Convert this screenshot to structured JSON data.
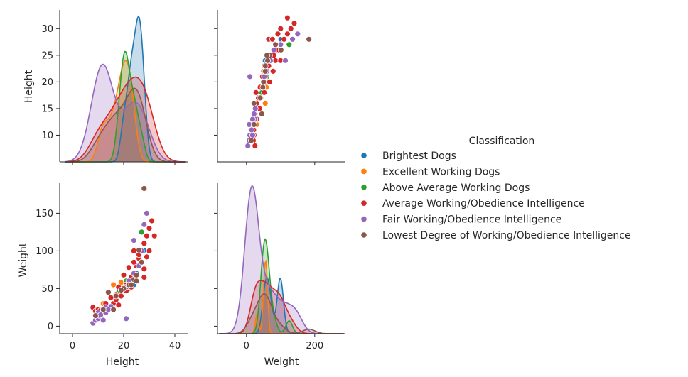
{
  "chart_data": {
    "type": "scatter",
    "kind": "pairplot",
    "variables": [
      "Height",
      "Weight"
    ],
    "diagonal": "kde",
    "legend": {
      "title": "Classification",
      "placement": "right"
    },
    "axes": {
      "Height": {
        "ticks": [
          10,
          15,
          20,
          25,
          30
        ],
        "label": "Height"
      },
      "Weight": {
        "ticks": [
          0,
          50,
          100,
          150
        ],
        "label": "Weight"
      },
      "Height_x": {
        "ticks": [
          0,
          20,
          40
        ],
        "label": "Height"
      },
      "Weight_x": {
        "ticks": [
          0,
          200
        ],
        "label": "Weight"
      }
    },
    "series": [
      {
        "name": "Brightest Dogs",
        "color": "#1f77b4",
        "points": [
          [
            20,
            52
          ],
          [
            22,
            60
          ],
          [
            25,
            70
          ],
          [
            26,
            95
          ],
          [
            27,
            100
          ],
          [
            24,
            55
          ],
          [
            23,
            65
          ],
          [
            26,
            100
          ],
          [
            28,
            101
          ]
        ]
      },
      {
        "name": "Excellent Working Dogs",
        "color": "#ff7f0e",
        "points": [
          [
            12,
            30
          ],
          [
            16,
            55
          ],
          [
            20,
            55
          ],
          [
            22,
            50
          ],
          [
            23,
            60
          ],
          [
            19,
            58
          ]
        ]
      },
      {
        "name": "Above Average Working Dogs",
        "color": "#2ca02c",
        "points": [
          [
            18,
            45
          ],
          [
            20,
            50
          ],
          [
            21,
            58
          ],
          [
            23,
            62
          ],
          [
            25,
            80
          ],
          [
            27,
            125
          ],
          [
            22,
            55
          ],
          [
            24,
            65
          ],
          [
            21,
            60
          ],
          [
            20,
            50
          ],
          [
            19,
            48
          ]
        ]
      },
      {
        "name": "Average Working/Obedience Intelligence",
        "color": "#d62728",
        "points": [
          [
            8,
            25
          ],
          [
            9,
            20
          ],
          [
            10,
            22
          ],
          [
            12,
            18
          ],
          [
            14,
            25
          ],
          [
            16,
            30
          ],
          [
            17,
            35
          ],
          [
            18,
            28
          ],
          [
            19,
            40
          ],
          [
            20,
            50
          ],
          [
            21,
            55
          ],
          [
            22,
            60
          ],
          [
            23,
            65
          ],
          [
            24,
            70
          ],
          [
            25,
            80
          ],
          [
            26,
            90
          ],
          [
            27,
            100
          ],
          [
            28,
            110
          ],
          [
            29,
            120
          ],
          [
            30,
            130
          ],
          [
            31,
            140
          ],
          [
            32,
            120
          ],
          [
            26,
            95
          ],
          [
            24,
            85
          ],
          [
            22,
            78
          ],
          [
            20,
            68
          ],
          [
            18,
            52
          ],
          [
            17,
            42
          ],
          [
            21,
            47
          ],
          [
            23,
            52
          ],
          [
            25,
            60
          ],
          [
            28,
            65
          ],
          [
            29,
            92
          ],
          [
            27,
            100
          ],
          [
            24,
            100
          ],
          [
            15,
            38
          ],
          [
            13,
            30
          ],
          [
            11,
            21
          ],
          [
            30,
            100
          ],
          [
            28,
            76
          ]
        ]
      },
      {
        "name": "Fair Working/Obedience Intelligence",
        "color": "#9467bd",
        "points": [
          [
            8,
            4
          ],
          [
            9,
            8
          ],
          [
            10,
            10
          ],
          [
            11,
            13
          ],
          [
            10,
            18
          ],
          [
            12,
            22
          ],
          [
            13,
            25
          ],
          [
            14,
            21
          ],
          [
            15,
            26
          ],
          [
            11,
            15
          ],
          [
            12,
            8
          ],
          [
            13,
            18
          ],
          [
            21,
            52
          ],
          [
            22,
            60
          ],
          [
            24,
            70
          ],
          [
            26,
            80
          ],
          [
            27,
            100
          ],
          [
            29,
            150
          ],
          [
            28,
            135
          ],
          [
            24,
            114
          ],
          [
            21,
            10
          ],
          [
            14,
            22
          ]
        ]
      },
      {
        "name": "Lowest Degree of Working/Obedience Intelligence",
        "color": "#8c564b",
        "points": [
          [
            9,
            14
          ],
          [
            12,
            22
          ],
          [
            14,
            45
          ],
          [
            16,
            22
          ],
          [
            17,
            40
          ],
          [
            20,
            50
          ],
          [
            22,
            55
          ],
          [
            24,
            62
          ],
          [
            25,
            68
          ],
          [
            26,
            101
          ],
          [
            27,
            85
          ],
          [
            28,
            183
          ],
          [
            25,
            60
          ],
          [
            23,
            55
          ],
          [
            19,
            48
          ]
        ]
      }
    ],
    "kde": {
      "Height": [
        {
          "series": "Brightest Dogs",
          "peak_x": 22,
          "peak_density": 32.3,
          "shape": "bimodal-dip",
          "dip_x": 16.5,
          "dip_density": 8.5
        },
        {
          "series": "Excellent Working Dogs",
          "peak_x": 21,
          "peak_density": 24
        },
        {
          "series": "Above Average Working Dogs",
          "peak_x": 21.5,
          "peak_density": 25.7
        },
        {
          "series": "Average Working/Obedience Intelligence",
          "peak_x": 23,
          "peak_density": 20.9
        },
        {
          "series": "Fair Working/Obedience Intelligence",
          "peak_x": 11.5,
          "peak_density": 23.3
        },
        {
          "series": "Lowest Degree of Working/Obedience Intelligence",
          "peak_x": 24,
          "peak_density": 18.8
        }
      ],
      "Weight": [
        {
          "series": "Brightest Dogs",
          "peak_x": 65,
          "peak_density_frac": 0.38
        },
        {
          "series": "Excellent Working Dogs",
          "peak_x": 50,
          "peak_density_frac": 0.49
        },
        {
          "series": "Above Average Working Dogs",
          "peak_x": 50,
          "peak_density_frac": 0.64
        },
        {
          "series": "Average Working/Obedience Intelligence",
          "peak_x": 45,
          "peak_density_frac": 0.36
        },
        {
          "series": "Fair Working/Obedience Intelligence",
          "peak_x": 15,
          "peak_density_frac": 1.0
        },
        {
          "series": "Lowest Degree of Working/Obedience Intelligence",
          "peak_x": 40,
          "peak_density_frac": 0.27
        }
      ]
    }
  }
}
